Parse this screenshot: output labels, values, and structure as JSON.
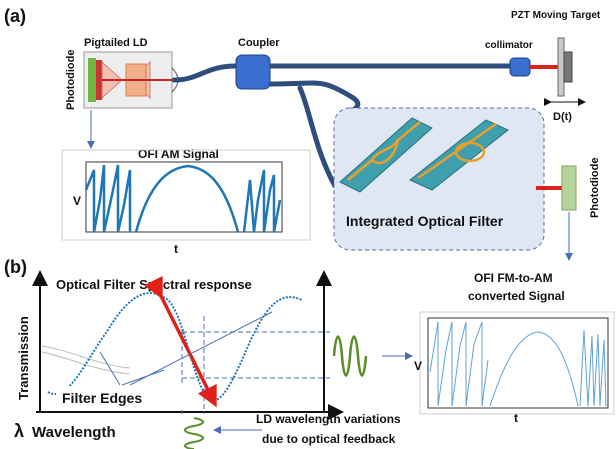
{
  "panel_a": {
    "tag": "(a)",
    "labels": {
      "photodiode_left": "Photodiode",
      "pigtailed_ld": "Pigtailed LD",
      "coupler": "Coupler",
      "collimator": "collimator",
      "pzt_target": "PZT Moving Target",
      "displacement": "D(t)",
      "ofi_am_title": "OFI AM Signal",
      "am_y_axis": "V",
      "am_x_axis": "t",
      "filter_title": "Integrated Optical Filter",
      "photodiode_right": "Photodiode",
      "fm_am_title_line1": "OFI FM-to-AM",
      "fm_am_title_line2": "converted Signal",
      "fm_am_y_axis": "V",
      "fm_am_x_axis": "t"
    }
  },
  "panel_b": {
    "tag": "(b)",
    "labels": {
      "spectral_title": "Optical Filter Spectral response",
      "y_axis": "Transmission",
      "x_axis_symbol": "λ",
      "x_axis": "Wavelength",
      "filter_edges": "Filter Edges",
      "ld_variation_line1": "LD wavelength variations",
      "ld_variation_line2": "due to optical feedback"
    }
  },
  "colors": {
    "fiber": "#2e4f7e",
    "signal": "#1f77b4",
    "filter_bg": "#dfe6f4",
    "chip": "#3f9fad",
    "waveguide": "#e8a02a",
    "arrow_red": "#e0211b",
    "wave_green": "#5a8f2c",
    "photodiode_green": "#b6d59a",
    "coupler_blue": "#3a6fd0"
  }
}
